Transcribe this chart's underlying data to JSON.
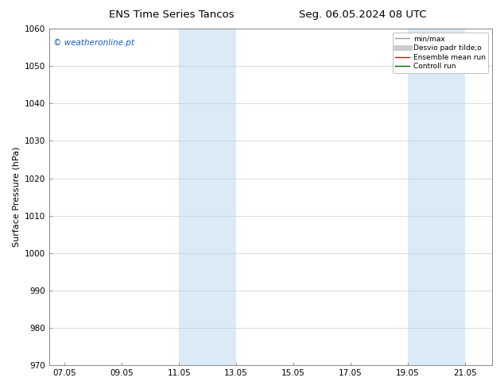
{
  "title_left": "ENS Time Series Tancos",
  "title_right": "Seg. 06.05.2024 08 UTC",
  "ylabel": "Surface Pressure (hPa)",
  "ylim": [
    970,
    1060
  ],
  "yticks": [
    970,
    980,
    990,
    1000,
    1010,
    1020,
    1030,
    1040,
    1050,
    1060
  ],
  "xlim_start": 6.5,
  "xlim_end": 22.0,
  "xtick_positions": [
    7.05,
    9.05,
    11.05,
    13.05,
    15.05,
    17.05,
    19.05,
    21.05
  ],
  "xtick_labels": [
    "07.05",
    "09.05",
    "11.05",
    "13.05",
    "15.05",
    "17.05",
    "19.05",
    "21.05"
  ],
  "shaded_bands": [
    {
      "x_start": 11.05,
      "x_end": 13.05
    },
    {
      "x_start": 19.05,
      "x_end": 21.05
    }
  ],
  "shaded_color": "#daeaf6",
  "watermark_text": "© weatheronline.pt",
  "watermark_color": "#1a5eb8",
  "background_color": "#ffffff",
  "legend_entries": [
    {
      "label": "min/max",
      "color": "#999999",
      "lw": 1.0,
      "style": "solid"
    },
    {
      "label": "Desvio padr tilde;o",
      "color": "#cccccc",
      "lw": 5,
      "style": "solid"
    },
    {
      "label": "Ensemble mean run",
      "color": "#ff0000",
      "lw": 1.0,
      "style": "solid"
    },
    {
      "label": "Controll run",
      "color": "#006600",
      "lw": 1.0,
      "style": "solid"
    }
  ],
  "title_fontsize": 9.5,
  "tick_fontsize": 7.5,
  "ylabel_fontsize": 8,
  "watermark_fontsize": 7.5,
  "legend_fontsize": 6.5,
  "grid_color": "#cccccc",
  "grid_lw": 0.5,
  "fig_width": 6.34,
  "fig_height": 4.9,
  "dpi": 100
}
